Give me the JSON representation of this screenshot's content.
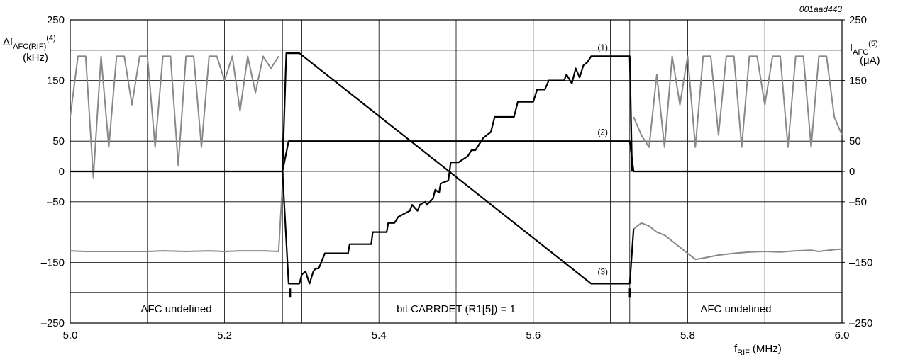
{
  "chart_data": {
    "type": "line",
    "figure_id": "001aad443",
    "ylabel": {
      "main": "Δf",
      "sub": "AFC(RIF)",
      "sup": "(4)",
      "unit": "(kHz)"
    },
    "y2label": {
      "main": "I",
      "sub": "AFC",
      "sup": "(5)",
      "unit": "(μA)"
    },
    "xlabel": {
      "main": "f",
      "sub": "RIF",
      "unit": "(MHz)"
    },
    "xlim": [
      5.0,
      6.0
    ],
    "xticks": [
      {
        "value": 5.0,
        "label": "5.0"
      },
      5.2,
      5.4,
      5.6,
      5.8,
      {
        "value": 6.0,
        "label": "6.0"
      }
    ],
    "xgrid": [
      5.1,
      5.275,
      5.3,
      5.5,
      5.7,
      5.725,
      5.9
    ],
    "ylim": [
      -250,
      250
    ],
    "yticks": [
      {
        "value": -250,
        "label": "–250"
      },
      {
        "value": -150,
        "label": "–150"
      },
      {
        "value": -50,
        "label": "–50"
      },
      0,
      50,
      150,
      250
    ],
    "y2lim": [
      -250,
      250
    ],
    "y2ticks": [
      {
        "value": -250,
        "label": "–250"
      },
      {
        "value": -150,
        "label": "–150"
      },
      {
        "value": -50,
        "label": "–50"
      },
      0,
      50,
      150,
      250
    ],
    "ygrid": [
      -200,
      -100,
      100,
      200
    ],
    "grid": true,
    "region_line": -200,
    "region_marks": [
      5.285,
      5.725
    ],
    "regions": [
      {
        "text": "AFC undefined",
        "from": 5.0,
        "to": 5.275
      },
      {
        "text": "bit CARRDET (R1[5]) = 1",
        "from": 5.275,
        "to": 5.725
      },
      {
        "text": "AFC undefined",
        "from": 5.725,
        "to": 6.0
      }
    ],
    "series": [
      {
        "name": "(1)",
        "color": "#000000",
        "x": [
          5.275,
          5.283,
          5.297,
          5.3,
          5.305,
          5.31,
          5.315,
          5.318,
          5.322,
          5.33,
          5.36,
          5.362,
          5.39,
          5.392,
          5.41,
          5.412,
          5.42,
          5.425,
          5.44,
          5.443,
          5.45,
          5.453,
          5.46,
          5.462,
          5.47,
          5.473,
          5.478,
          5.48,
          5.49,
          5.493,
          5.5,
          5.503,
          5.515,
          5.52,
          5.525,
          5.53,
          5.535,
          5.54,
          5.545,
          5.55,
          5.575,
          5.58,
          5.6,
          5.605,
          5.615,
          5.62,
          5.64,
          5.643,
          5.65,
          5.655,
          5.66,
          5.665,
          5.67,
          5.675,
          5.725,
          5.728
        ],
        "values": [
          0,
          -185,
          -185,
          -170,
          -165,
          -185,
          -165,
          -160,
          -160,
          -135,
          -135,
          -120,
          -120,
          -100,
          -100,
          -85,
          -85,
          -75,
          -65,
          -55,
          -65,
          -55,
          -50,
          -55,
          -45,
          -30,
          -35,
          -20,
          -15,
          15,
          15,
          15,
          25,
          35,
          35,
          45,
          55,
          60,
          65,
          90,
          90,
          115,
          115,
          135,
          135,
          150,
          150,
          160,
          145,
          170,
          155,
          175,
          180,
          190,
          190,
          0
        ]
      },
      {
        "name": "(2)",
        "color": "#000000",
        "x": [
          5.0,
          5.275,
          5.283,
          5.725,
          5.73,
          6.0
        ],
        "values": [
          0,
          0,
          50,
          50,
          0,
          0
        ]
      },
      {
        "name": "(3)",
        "color": "#000000",
        "x": [
          5.275,
          5.28,
          5.297,
          5.675,
          5.725,
          5.73
        ],
        "values": [
          0,
          195,
          195,
          -185,
          -185,
          -95
        ]
      },
      {
        "color": "#888888",
        "x": [
          5.0,
          5.01,
          5.02,
          5.03,
          5.04,
          5.05,
          5.06,
          5.07,
          5.08,
          5.09,
          5.1,
          5.11,
          5.12,
          5.13,
          5.14,
          5.15,
          5.16,
          5.17,
          5.18,
          5.19,
          5.2,
          5.21,
          5.22,
          5.23,
          5.24,
          5.25,
          5.26,
          5.27
        ],
        "values": [
          90,
          190,
          190,
          -10,
          190,
          40,
          190,
          190,
          110,
          190,
          190,
          40,
          190,
          190,
          10,
          190,
          190,
          40,
          190,
          190,
          150,
          190,
          100,
          190,
          130,
          190,
          170,
          190
        ]
      },
      {
        "color": "#888888",
        "x": [
          5.0,
          5.02,
          5.05,
          5.08,
          5.1,
          5.12,
          5.15,
          5.18,
          5.2,
          5.22,
          5.25,
          5.27,
          5.276
        ],
        "values": [
          -131,
          -132,
          -132,
          -132,
          -132,
          -131,
          -132,
          -131,
          -132,
          -131,
          -131,
          -132,
          0
        ]
      },
      {
        "color": "#888888",
        "x": [
          5.73,
          5.74,
          5.75,
          5.76,
          5.77,
          5.78,
          5.79,
          5.8,
          5.81,
          5.82,
          5.83,
          5.84,
          5.85,
          5.86,
          5.87,
          5.88,
          5.89,
          5.9,
          5.91,
          5.92,
          5.93,
          5.94,
          5.95,
          5.96,
          5.97,
          5.98,
          5.99,
          6.0
        ],
        "values": [
          90,
          60,
          40,
          160,
          40,
          190,
          110,
          190,
          40,
          190,
          190,
          60,
          190,
          190,
          40,
          190,
          190,
          110,
          190,
          190,
          40,
          190,
          190,
          40,
          190,
          190,
          90,
          60
        ]
      },
      {
        "color": "#888888",
        "x": [
          5.73,
          5.74,
          5.75,
          5.76,
          5.77,
          5.78,
          5.79,
          5.8,
          5.81,
          5.82,
          5.84,
          5.86,
          5.88,
          5.9,
          5.92,
          5.94,
          5.96,
          5.97,
          5.99,
          6.0
        ],
        "values": [
          -95,
          -85,
          -90,
          -100,
          -105,
          -115,
          -125,
          -135,
          -145,
          -143,
          -138,
          -135,
          -133,
          -132,
          -133,
          -131,
          -130,
          -132,
          -129,
          -128
        ]
      }
    ]
  }
}
